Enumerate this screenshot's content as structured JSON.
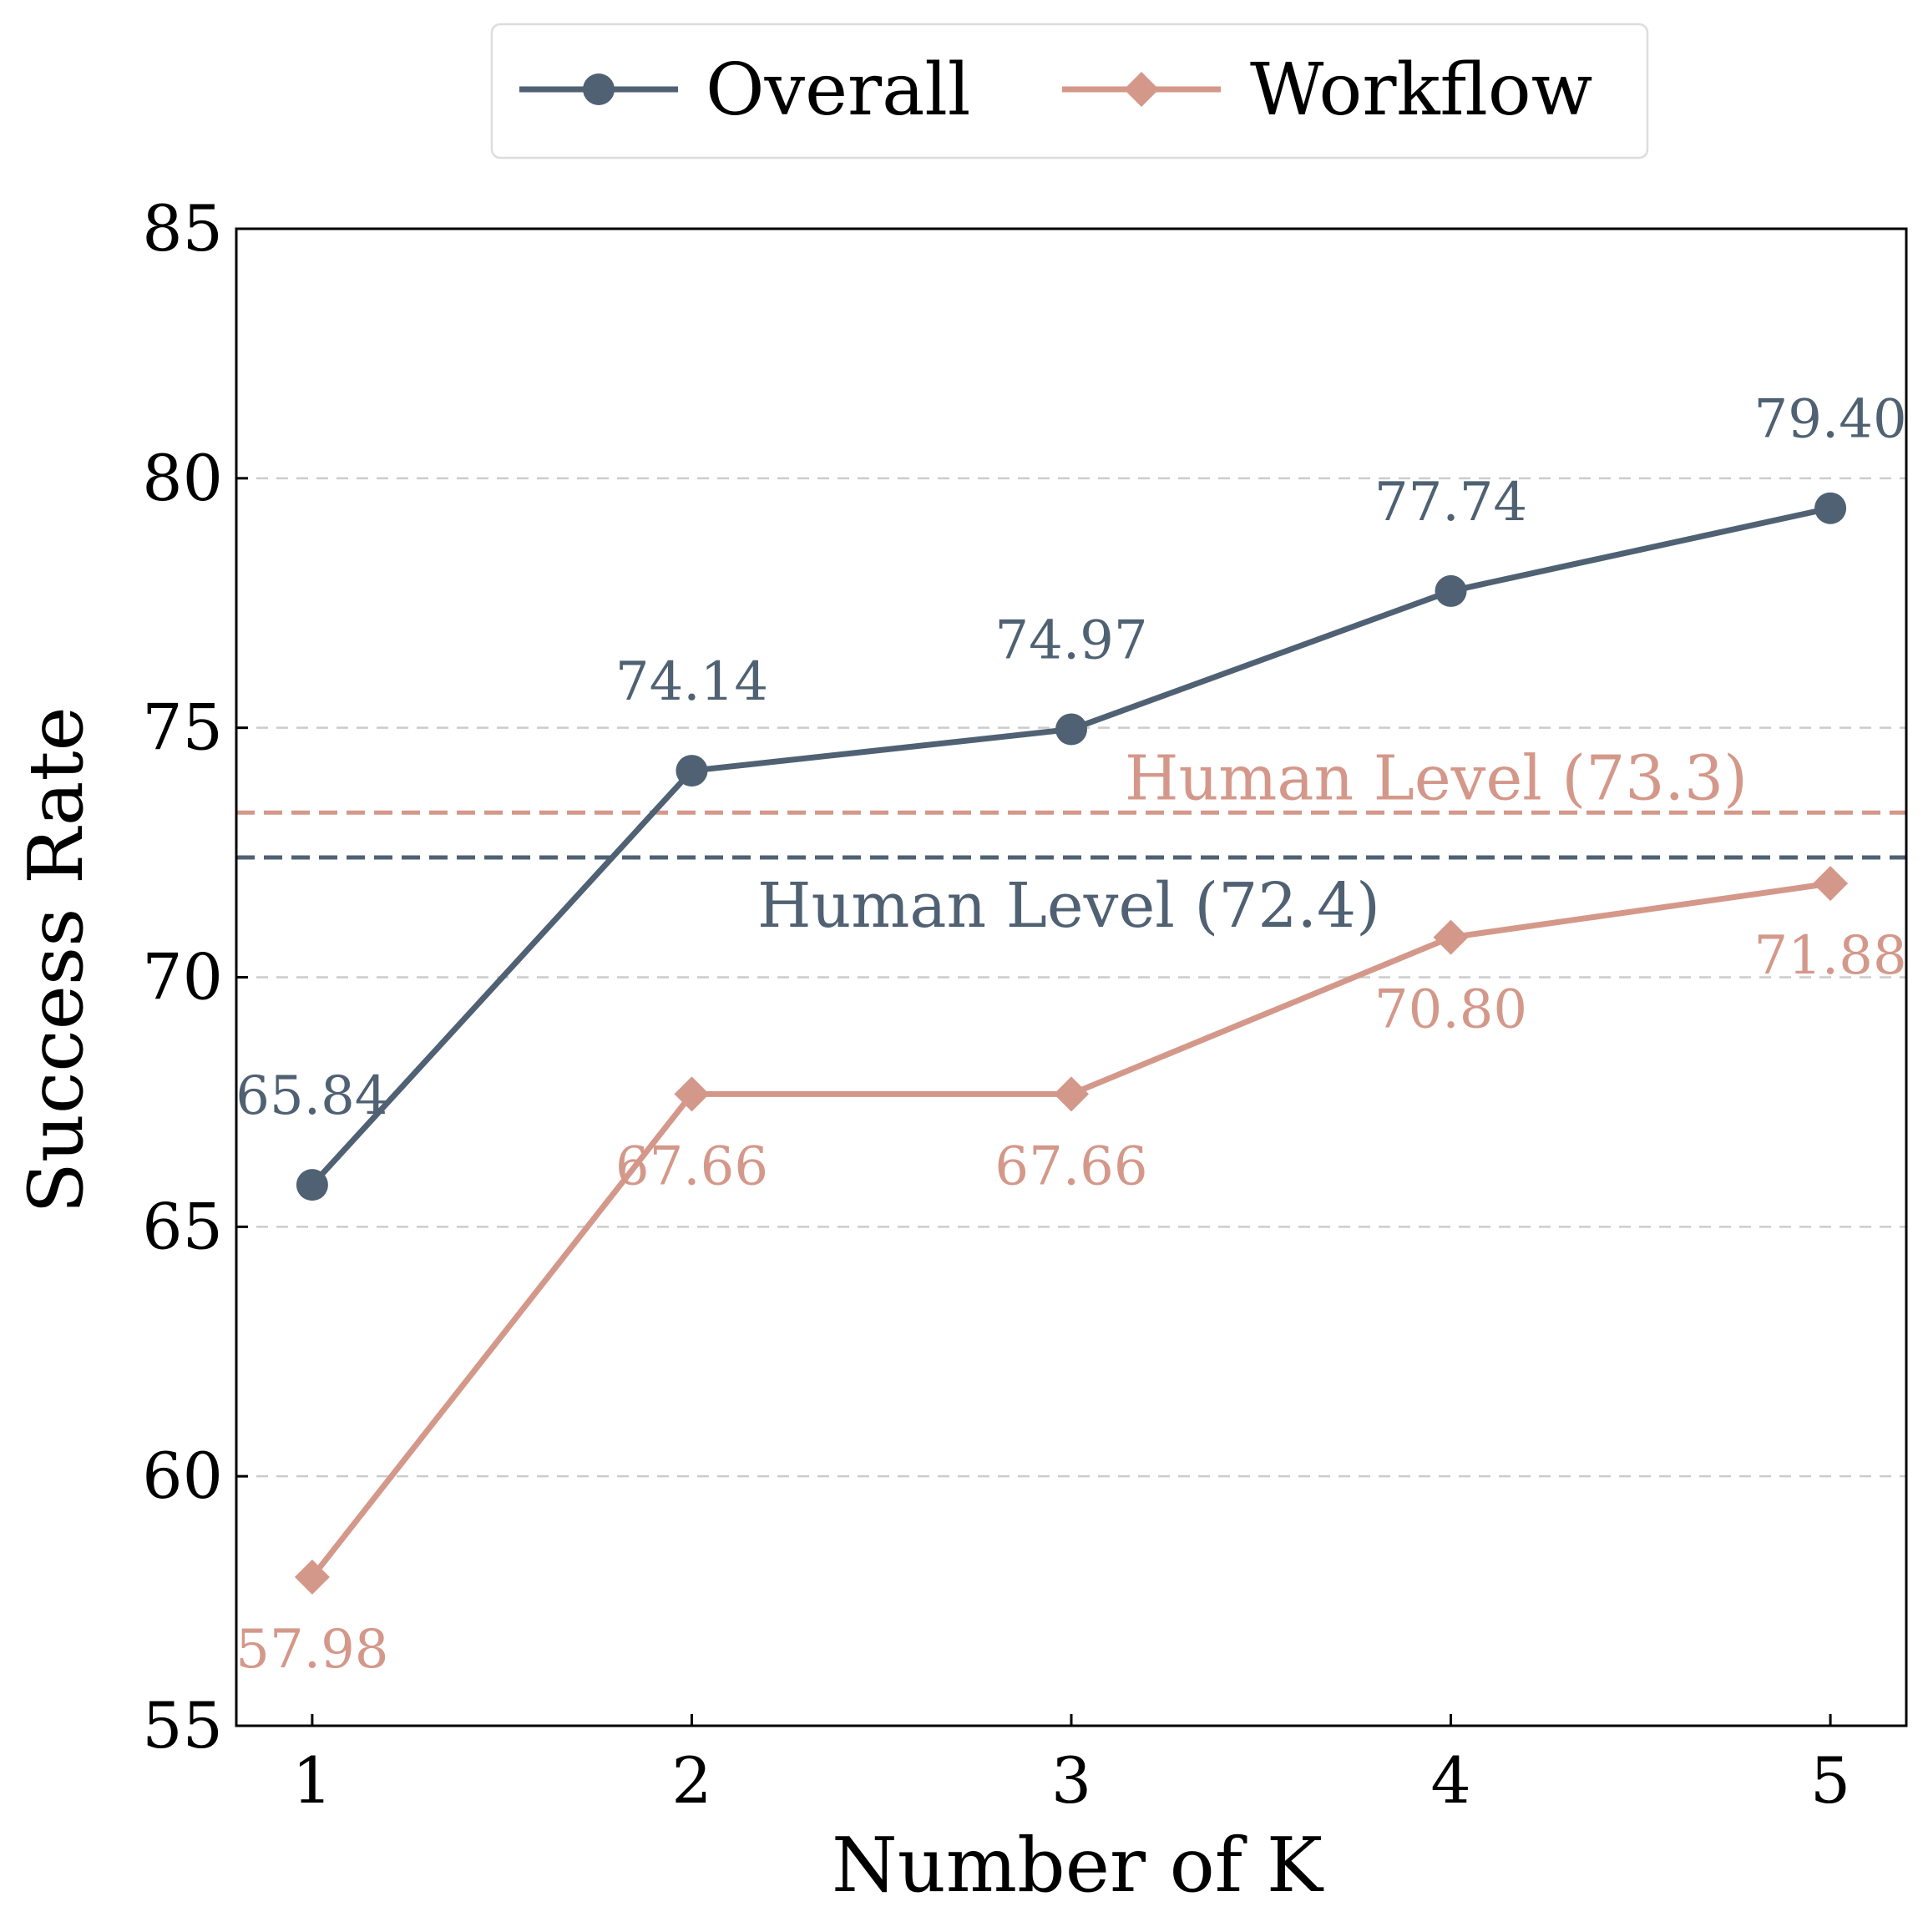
{
  "chart_data": {
    "type": "line",
    "title": "",
    "xlabel": "Number of K",
    "ylabel": "Success Rate",
    "x": [
      1,
      2,
      3,
      4,
      5
    ],
    "xlim": [
      0.8,
      5.2
    ],
    "ylim": [
      55,
      85
    ],
    "yticks": [
      55,
      60,
      65,
      70,
      75,
      80,
      85
    ],
    "grid": "horizontal-dashed",
    "legend_position": "top-center",
    "series": [
      {
        "name": "Overall",
        "color": "#4f6173",
        "marker": "circle",
        "values": [
          65.84,
          74.14,
          74.97,
          77.74,
          79.4
        ],
        "labels": [
          "65.84",
          "74.14",
          "74.97",
          "77.74",
          "79.40"
        ],
        "label_position": "above"
      },
      {
        "name": "Workflow",
        "color": "#d4988a",
        "marker": "diamond",
        "values": [
          57.98,
          67.66,
          67.66,
          70.8,
          71.88
        ],
        "labels": [
          "57.98",
          "67.66",
          "67.66",
          "70.80",
          "71.88"
        ],
        "label_position": "below"
      }
    ],
    "reference_lines": [
      {
        "label": "Human Level (73.3)",
        "value": 73.3,
        "color": "#d4988a",
        "label_position": "above"
      },
      {
        "label": "Human Level (72.4)",
        "value": 72.4,
        "color": "#4f6173",
        "label_position": "below"
      }
    ]
  }
}
